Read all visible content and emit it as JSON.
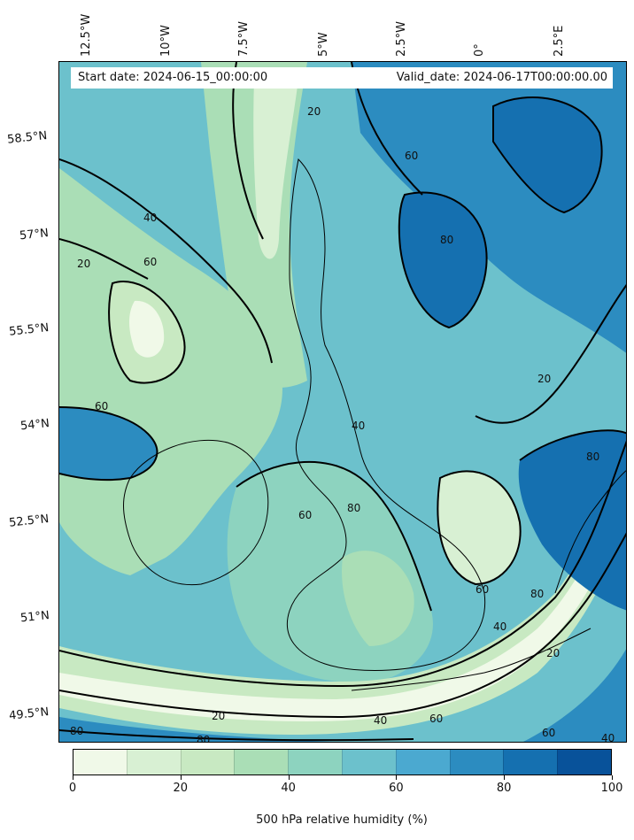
{
  "map": {
    "start_label": "Start date: 2024-06-15_00:00:00",
    "valid_label": "Valid_date: 2024-06-17T00:00:00.00",
    "lon_labels": [
      "12.5°W",
      "10°W",
      "7.5°W",
      "5°W",
      "2.5°W",
      "0°",
      "2.5°E"
    ],
    "lat_labels": [
      "58.5°N",
      "57°N",
      "55.5°N",
      "54°N",
      "52.5°N",
      "51°N",
      "49.5°N"
    ],
    "contour_labels": [
      "20",
      "40",
      "60",
      "80"
    ],
    "variable": "500 hPa relative humidity"
  },
  "colorbar": {
    "title": "500 hPa relative humidity (%)",
    "tick_labels": [
      "0",
      "20",
      "40",
      "60",
      "80",
      "100"
    ],
    "levels": [
      0,
      10,
      20,
      30,
      40,
      50,
      60,
      70,
      80,
      90,
      100
    ],
    "colors": [
      "#f0f9e8",
      "#d8f0d3",
      "#c8e9c2",
      "#aadeb6",
      "#8dd3bf",
      "#6cc1cc",
      "#4ba9d0",
      "#2c8cc0",
      "#1570b0",
      "#08529a"
    ]
  }
}
